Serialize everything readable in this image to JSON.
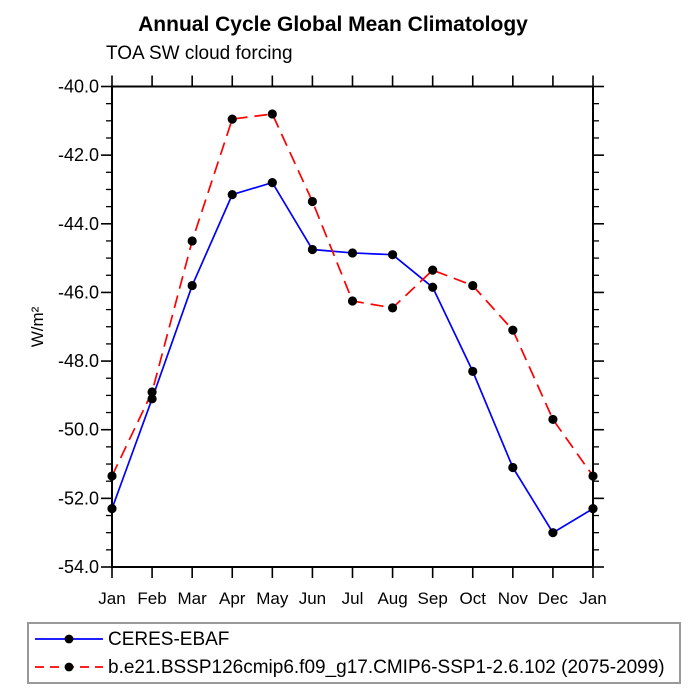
{
  "chart_data": {
    "type": "line",
    "title": "Annual Cycle Global Mean Climatology",
    "subtitle": "TOA SW cloud forcing",
    "ylabel": "W/m²",
    "xlabel": "",
    "categories": [
      "Jan",
      "Feb",
      "Mar",
      "Apr",
      "May",
      "Jun",
      "Jul",
      "Aug",
      "Sep",
      "Oct",
      "Nov",
      "Dec",
      "Jan"
    ],
    "ylim": [
      -54.0,
      -40.0
    ],
    "y_major_ticks": [
      -40.0,
      -42.0,
      -44.0,
      -46.0,
      -48.0,
      -50.0,
      -52.0,
      -54.0
    ],
    "y_tick_labels": [
      "-40.0",
      "-42.0",
      "-44.0",
      "-46.0",
      "-48.0",
      "-50.0",
      "-52.0",
      "-54.0"
    ],
    "y_minor_step": 0.5,
    "grid": false,
    "legend_position": "bottom",
    "axis_color": "#000000",
    "marker_color": "#000000",
    "background_color": "#ffffff",
    "series": [
      {
        "name": "CERES-EBAF",
        "color": "#0000ff",
        "line_style": "solid",
        "marker": "filled-circle",
        "values": [
          -52.3,
          -49.1,
          -45.8,
          -43.15,
          -42.8,
          -44.75,
          -44.85,
          -44.9,
          -45.85,
          -48.3,
          -51.1,
          -53.0,
          -52.3
        ]
      },
      {
        "name": "b.e21.BSSP126cmip6.f09_g17.CMIP6-SSP1-2.6.102 (2075-2099)",
        "color": "#ff0000",
        "line_style": "dashed",
        "marker": "filled-circle",
        "values": [
          -51.35,
          -48.9,
          -44.5,
          -40.95,
          -40.8,
          -43.35,
          -46.25,
          -46.45,
          -45.35,
          -45.8,
          -47.1,
          -49.7,
          -51.35
        ]
      }
    ]
  }
}
